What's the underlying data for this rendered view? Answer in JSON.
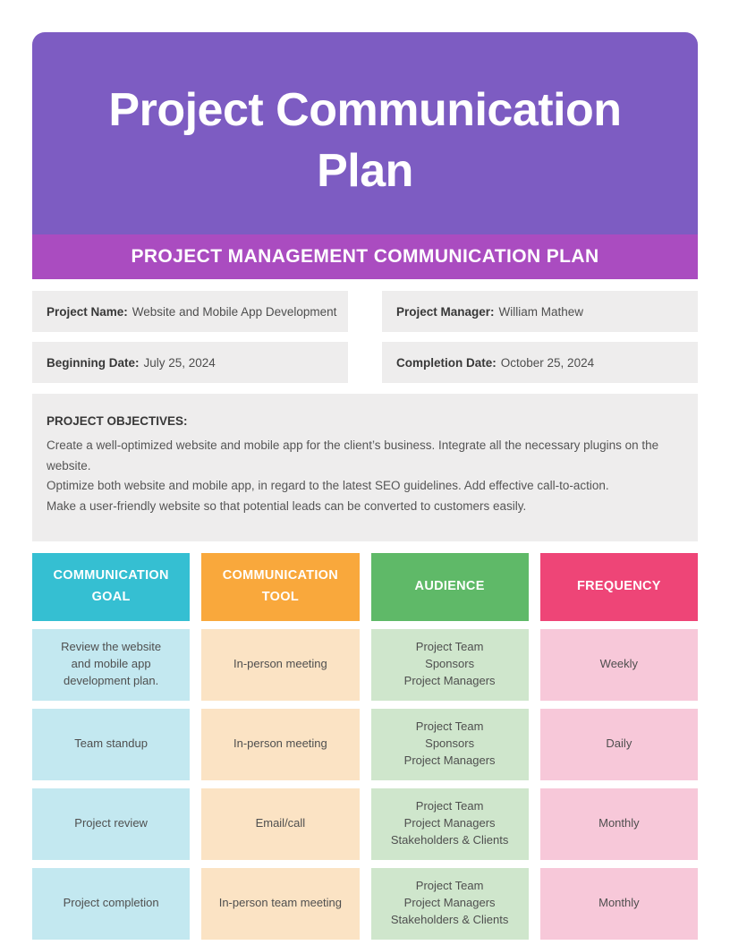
{
  "colors": {
    "header_bg": "#7D5CC2",
    "banner_bg": "#AA4CC0",
    "info_bg": "#EEEDED",
    "col_teal": "#35BFD2",
    "col_orange": "#F9A83C",
    "col_green": "#5FB968",
    "col_pink": "#EE4577",
    "cell_teal": "#C3E8F0",
    "cell_orange": "#FBE3C4",
    "cell_green": "#CFE6CC",
    "cell_pink": "#F7C8D9"
  },
  "header": {
    "title": "Project Communication Plan",
    "banner": "PROJECT MANAGEMENT COMMUNICATION PLAN"
  },
  "info": {
    "project_name_label": "Project Name:",
    "project_name_value": "Website and Mobile App Development",
    "project_manager_label": "Project Manager:",
    "project_manager_value": "William Mathew",
    "beginning_date_label": "Beginning Date:",
    "beginning_date_value": "July 25, 2024",
    "completion_date_label": "Completion Date:",
    "completion_date_value": "October 25, 2024"
  },
  "objectives": {
    "heading": "PROJECT OBJECTIVES:",
    "lines": [
      "Create a well-optimized website and mobile app for the client’s business. Integrate all the necessary plugins on the website.",
      "Optimize both website and mobile app, in regard to the latest SEO guidelines. Add effective call-to-action.",
      "Make a user-friendly website so that potential leads can be converted to customers easily."
    ]
  },
  "table": {
    "headers": [
      "COMMUNICATION GOAL",
      "COMMUNICATION TOOL",
      "AUDIENCE",
      "FREQUENCY"
    ],
    "rows": [
      {
        "goal": "Review the website\nand mobile app\ndevelopment plan.",
        "tool": "In-person meeting",
        "audience": "Project Team\nSponsors\nProject Managers",
        "frequency": "Weekly"
      },
      {
        "goal": "Team standup",
        "tool": "In-person meeting",
        "audience": "Project Team\nSponsors\nProject Managers",
        "frequency": "Daily"
      },
      {
        "goal": "Project review",
        "tool": "Email/call",
        "audience": "Project Team\nProject Managers\nStakeholders & Clients",
        "frequency": "Monthly"
      },
      {
        "goal": "Project completion",
        "tool": "In-person team meeting",
        "audience": "Project Team\nProject Managers\nStakeholders & Clients",
        "frequency": "Monthly"
      }
    ]
  }
}
